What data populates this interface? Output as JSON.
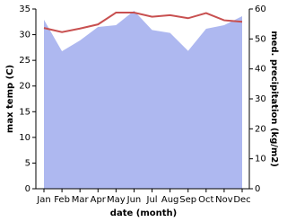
{
  "chart_data": {
    "type": "line",
    "x_label": "date (month)",
    "y_label": "max temp (C)",
    "y2_label": "med. precipitation (kg/m2)",
    "categories": [
      "Jan",
      "Feb",
      "Mar",
      "Apr",
      "May",
      "Jun",
      "Jul",
      "Aug",
      "Sep",
      "Oct",
      "Nov",
      "Dec"
    ],
    "series": [
      {
        "name": "max temp",
        "type": "line",
        "color": "#c85050",
        "values": [
          31.3,
          30.5,
          31.2,
          32.0,
          34.3,
          34.3,
          33.5,
          33.8,
          33.2,
          34.2,
          32.8,
          32.5
        ]
      },
      {
        "name": "med. precipitation",
        "type": "area",
        "axis": "y2",
        "color": "#aeb8f0",
        "values": [
          56.4,
          45.9,
          49.5,
          54.0,
          54.6,
          59.4,
          53.0,
          52.0,
          46.0,
          53.4,
          54.6,
          57.6
        ]
      }
    ],
    "ylim": [
      0,
      35
    ],
    "yticks": [
      0,
      5,
      10,
      15,
      20,
      25,
      30,
      35
    ],
    "y2lim": [
      0,
      60
    ],
    "y2ticks": [
      0,
      10,
      20,
      30,
      40,
      50,
      60
    ]
  }
}
